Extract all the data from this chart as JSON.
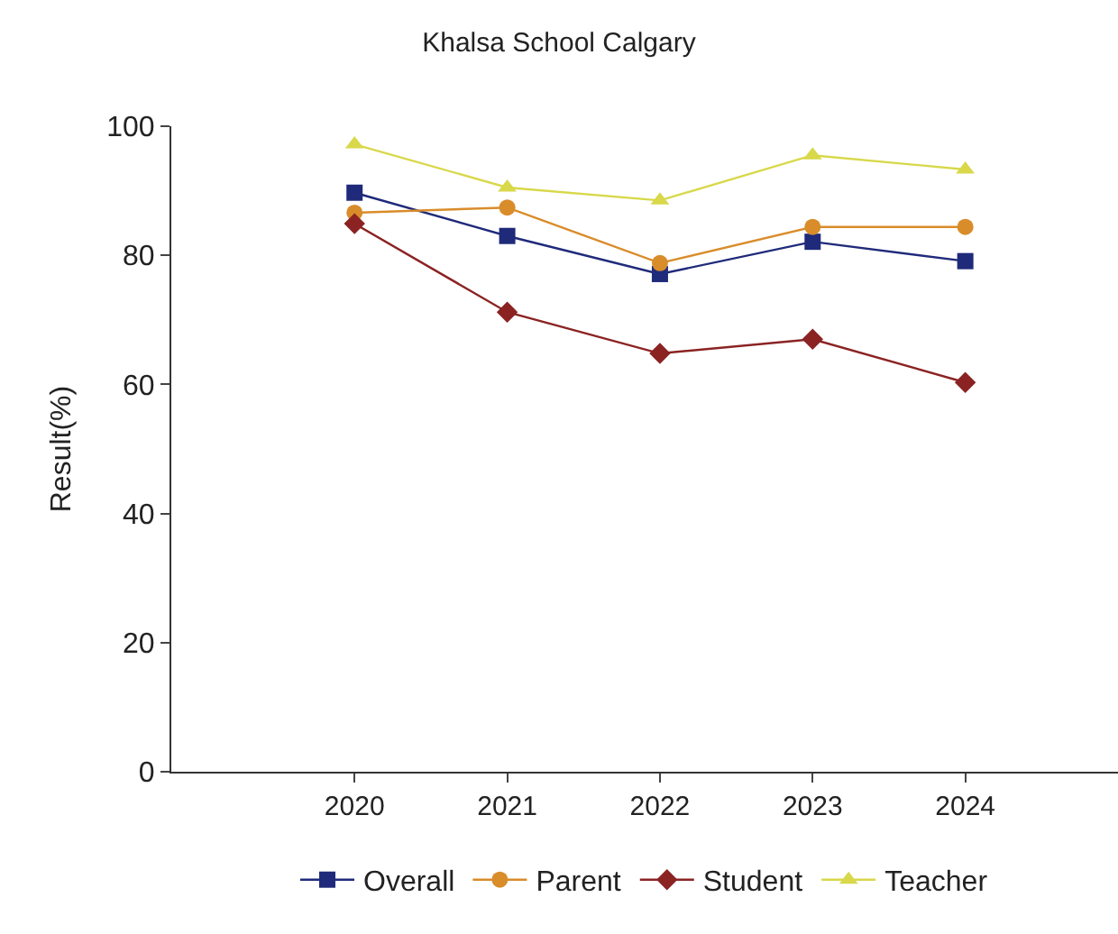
{
  "chart_data": {
    "type": "line",
    "title": "Khalsa School Calgary",
    "ylabel": "Result(%)",
    "categories": [
      "2020",
      "2021",
      "2022",
      "2023",
      "2024"
    ],
    "series": [
      {
        "name": "Overall",
        "color": "#1f2a7a",
        "marker": "square",
        "values": [
          89.7,
          83.0,
          77.1,
          82.1,
          79.1
        ]
      },
      {
        "name": "Parent",
        "color": "#d98c2a",
        "marker": "circle",
        "values": [
          86.6,
          87.4,
          78.8,
          84.4,
          84.4
        ]
      },
      {
        "name": "Student",
        "color": "#8b2323",
        "marker": "diamond",
        "values": [
          84.9,
          71.2,
          64.8,
          67.0,
          60.3
        ]
      },
      {
        "name": "Teacher",
        "color": "#d8d84a",
        "marker": "triangle",
        "values": [
          97.2,
          90.5,
          88.5,
          95.5,
          93.3
        ]
      }
    ],
    "ylim": [
      0,
      100
    ],
    "yticks": [
      0,
      20,
      40,
      60,
      80,
      100
    ],
    "legend": "bottom"
  }
}
